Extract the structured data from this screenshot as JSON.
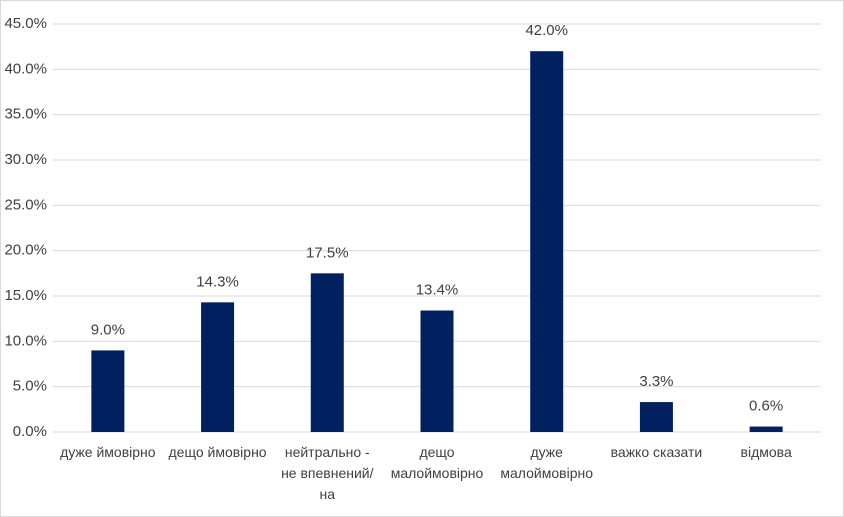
{
  "chart_data": {
    "type": "bar",
    "categories": [
      "дуже ймовірно",
      "дещо ймовірно",
      "нейтрально - не впевнений/на",
      "дещо малоймовірно",
      "дуже малоймовірно",
      "важко сказати",
      "відмова"
    ],
    "values": [
      9.0,
      14.3,
      17.5,
      13.4,
      42.0,
      3.3,
      0.6
    ],
    "value_labels": [
      "9.0%",
      "14.3%",
      "17.5%",
      "13.4%",
      "42.0%",
      "3.3%",
      "0.6%"
    ],
    "color": "#002060",
    "ylim": [
      0,
      45
    ],
    "yticks": [
      {
        "value": 0,
        "label": "0.0%"
      },
      {
        "value": 5,
        "label": "5.0%"
      },
      {
        "value": 10,
        "label": "10.0%"
      },
      {
        "value": 15,
        "label": "15.0%"
      },
      {
        "value": 20,
        "label": "20.0%"
      },
      {
        "value": 25,
        "label": "25.0%"
      },
      {
        "value": 30,
        "label": "30.0%"
      },
      {
        "value": 35,
        "label": "35.0%"
      },
      {
        "value": 40,
        "label": "40.0%"
      },
      {
        "value": 45,
        "label": "45.0%"
      }
    ],
    "grid": true
  }
}
